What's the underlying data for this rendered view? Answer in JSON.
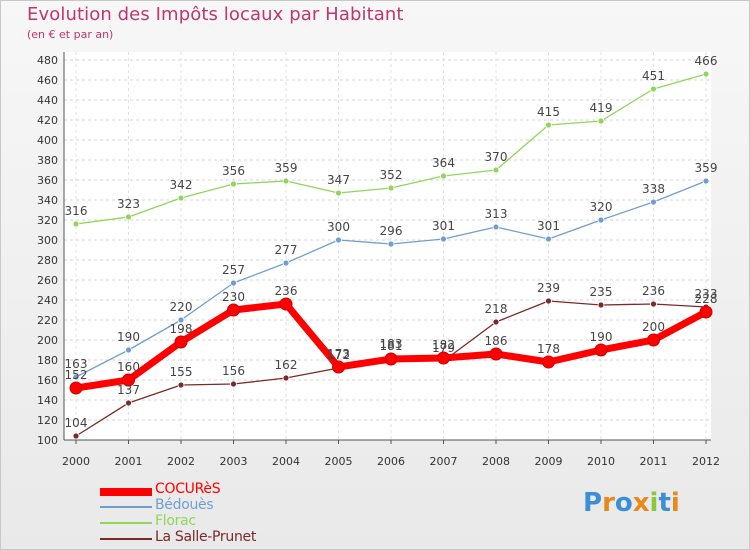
{
  "header": {
    "title": "Evolution des Impôts locaux par Habitant",
    "subtitle": "(en € et par an)"
  },
  "logo": {
    "letters": [
      "P",
      "r",
      "o",
      "x",
      "i",
      "t",
      "i"
    ],
    "colors": [
      "#3a8fd6",
      "#e8891a",
      "#3a8fd6",
      "#e8891a",
      "#8cc63f",
      "#3a8fd6",
      "#e8891a"
    ]
  },
  "chart_data": {
    "type": "line",
    "title": "Evolution des Impôts locaux par Habitant",
    "subtitle": "(en € et par an)",
    "xlabel": "",
    "ylabel": "",
    "x": [
      "2000",
      "2001",
      "2002",
      "2003",
      "2004",
      "2005",
      "2006",
      "2007",
      "2008",
      "2009",
      "2010",
      "2011",
      "2012"
    ],
    "ylim": [
      100,
      480
    ],
    "yticks": [
      100,
      120,
      140,
      160,
      180,
      200,
      220,
      240,
      260,
      280,
      300,
      320,
      340,
      360,
      380,
      400,
      420,
      440,
      460,
      480
    ],
    "grid": "horizontal dashed",
    "legend": "bottom-left",
    "series": [
      {
        "name": "La Salle-Prunet",
        "color": "#7a2a2a",
        "values": [
          104,
          137,
          155,
          156,
          162,
          172,
          183,
          179,
          218,
          239,
          235,
          236,
          233
        ]
      },
      {
        "name": "Florac",
        "color": "#8fd65a",
        "values": [
          316,
          323,
          342,
          356,
          359,
          347,
          352,
          364,
          370,
          415,
          419,
          451,
          466
        ]
      },
      {
        "name": "Bédouès",
        "color": "#6f9fd0",
        "values": [
          163,
          190,
          220,
          257,
          277,
          300,
          296,
          301,
          313,
          301,
          320,
          338,
          359
        ]
      },
      {
        "name": "COCURèS",
        "color": "#ff0000",
        "values": [
          152,
          160,
          198,
          230,
          236,
          173,
          181,
          182,
          186,
          178,
          190,
          200,
          228
        ]
      }
    ],
    "legend_order": [
      "COCURèS",
      "Bédouès",
      "Florac",
      "La Salle-Prunet"
    ]
  }
}
